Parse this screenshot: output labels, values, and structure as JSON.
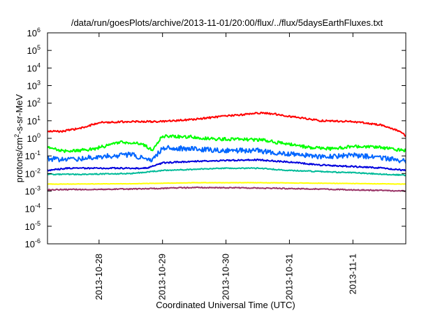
{
  "chart_data": {
    "type": "line",
    "title": "/data/run/goesPlots/archive/2013-11-01/20:00/flux/../flux/5daysEarthFluxes.txt",
    "xlabel": "Coordinated Universal Time (UTC)",
    "ylabel": {
      "prefix": "protons/cm",
      "sup": "2",
      "suffix": "-s-sr-MeV"
    },
    "xlim": [
      "2013-10-27T04:30",
      "2013-11-01T20:00"
    ],
    "ylim": [
      1e-06,
      1000000.0
    ],
    "yscale": "log",
    "grid": false,
    "x_ticks": [
      {
        "x": "2013-10-28T00:00",
        "label": "2013-10-28"
      },
      {
        "x": "2013-10-29T00:00",
        "label": "2013-10-29"
      },
      {
        "x": "2013-10-30T00:00",
        "label": "2013-10-30"
      },
      {
        "x": "2013-10-31T00:00",
        "label": "2013-10-31"
      },
      {
        "x": "2013-11-01T00:00",
        "label": "2013-11-1"
      }
    ],
    "y_ticks": [
      {
        "value": 1e-06,
        "base": "10",
        "exp": "-6"
      },
      {
        "value": 1e-05,
        "base": "10",
        "exp": "-5"
      },
      {
        "value": 0.0001,
        "base": "10",
        "exp": "-4"
      },
      {
        "value": 0.001,
        "base": "10",
        "exp": "-3"
      },
      {
        "value": 0.01,
        "base": "10",
        "exp": "-2"
      },
      {
        "value": 0.1,
        "base": "10",
        "exp": "-1"
      },
      {
        "value": 1,
        "base": "10",
        "exp": "0"
      },
      {
        "value": 10,
        "base": "10",
        "exp": "1"
      },
      {
        "value": 100,
        "base": "10",
        "exp": "2"
      },
      {
        "value": 1000,
        "base": "10",
        "exp": "3"
      },
      {
        "value": 10000,
        "base": "10",
        "exp": "4"
      },
      {
        "value": 100000,
        "base": "10",
        "exp": "5"
      },
      {
        "value": 1000000,
        "base": "10",
        "exp": "6"
      }
    ],
    "series": [
      {
        "color": "#ff0000",
        "noise": 0.05,
        "points": [
          [
            "2013-10-27T04:30",
            2.5
          ],
          [
            "2013-10-27T10:00",
            2.5
          ],
          [
            "2013-10-27T18:00",
            4.0
          ],
          [
            "2013-10-28T00:00",
            8.0
          ],
          [
            "2013-10-28T12:00",
            9.0
          ],
          [
            "2013-10-29T00:00",
            9.0
          ],
          [
            "2013-10-29T12:00",
            12.0
          ],
          [
            "2013-10-29T23:00",
            18.0
          ],
          [
            "2013-10-30T06:00",
            22.0
          ],
          [
            "2013-10-30T12:00",
            28.0
          ],
          [
            "2013-10-30T18:00",
            25.0
          ],
          [
            "2013-10-31T00:00",
            18.0
          ],
          [
            "2013-10-31T12:00",
            10.0
          ],
          [
            "2013-11-01T00:00",
            9.0
          ],
          [
            "2013-11-01T10:00",
            6.0
          ],
          [
            "2013-11-01T18:00",
            2.5
          ],
          [
            "2013-11-01T20:00",
            1.3
          ]
        ]
      },
      {
        "color": "#00ff00",
        "noise": 0.09,
        "points": [
          [
            "2013-10-27T04:30",
            0.3
          ],
          [
            "2013-10-27T12:00",
            0.18
          ],
          [
            "2013-10-27T22:00",
            0.25
          ],
          [
            "2013-10-28T08:00",
            0.6
          ],
          [
            "2013-10-28T16:00",
            0.5
          ],
          [
            "2013-10-28T20:00",
            0.22
          ],
          [
            "2013-10-29T00:00",
            1.3
          ],
          [
            "2013-10-29T12:00",
            1.2
          ],
          [
            "2013-10-29T20:00",
            0.9
          ],
          [
            "2013-10-30T06:00",
            0.9
          ],
          [
            "2013-10-30T14:00",
            0.8
          ],
          [
            "2013-10-30T22:00",
            0.5
          ],
          [
            "2013-10-31T08:00",
            0.3
          ],
          [
            "2013-10-31T16:00",
            0.25
          ],
          [
            "2013-11-01T00:00",
            0.35
          ],
          [
            "2013-11-01T10:00",
            0.3
          ],
          [
            "2013-11-01T20:00",
            0.2
          ]
        ]
      },
      {
        "color": "#0066ff",
        "noise": 0.14,
        "points": [
          [
            "2013-10-27T04:30",
            0.07
          ],
          [
            "2013-10-27T12:00",
            0.06
          ],
          [
            "2013-10-28T00:00",
            0.09
          ],
          [
            "2013-10-28T12:00",
            0.12
          ],
          [
            "2013-10-28T20:00",
            0.05
          ],
          [
            "2013-10-29T00:00",
            0.3
          ],
          [
            "2013-10-29T12:00",
            0.25
          ],
          [
            "2013-10-30T00:00",
            0.2
          ],
          [
            "2013-10-30T12:00",
            0.2
          ],
          [
            "2013-10-31T00:00",
            0.13
          ],
          [
            "2013-10-31T12:00",
            0.09
          ],
          [
            "2013-11-01T00:00",
            0.11
          ],
          [
            "2013-11-01T10:00",
            0.08
          ],
          [
            "2013-11-01T20:00",
            0.05
          ]
        ]
      },
      {
        "color": "#0000dd",
        "noise": 0.04,
        "points": [
          [
            "2013-10-27T04:30",
            0.015
          ],
          [
            "2013-10-27T12:00",
            0.02
          ],
          [
            "2013-10-28T00:00",
            0.02
          ],
          [
            "2013-10-28T18:00",
            0.02
          ],
          [
            "2013-10-29T00:00",
            0.04
          ],
          [
            "2013-10-29T12:00",
            0.05
          ],
          [
            "2013-10-30T00:00",
            0.055
          ],
          [
            "2013-10-30T12:00",
            0.06
          ],
          [
            "2013-10-31T00:00",
            0.045
          ],
          [
            "2013-10-31T12:00",
            0.03
          ],
          [
            "2013-11-01T00:00",
            0.025
          ],
          [
            "2013-11-01T12:00",
            0.02
          ],
          [
            "2013-11-01T20:00",
            0.015
          ]
        ]
      },
      {
        "color": "#00bb99",
        "noise": 0.03,
        "points": [
          [
            "2013-10-27T04:30",
            0.009
          ],
          [
            "2013-10-27T18:00",
            0.009
          ],
          [
            "2013-10-28T12:00",
            0.01
          ],
          [
            "2013-10-29T00:00",
            0.015
          ],
          [
            "2013-10-30T00:00",
            0.02
          ],
          [
            "2013-10-30T12:00",
            0.02
          ],
          [
            "2013-10-31T00:00",
            0.015
          ],
          [
            "2013-11-01T00:00",
            0.011
          ],
          [
            "2013-11-01T20:00",
            0.008
          ]
        ]
      },
      {
        "color": "#ffff00",
        "noise": 0.01,
        "points": [
          [
            "2013-10-27T04:30",
            0.0025
          ],
          [
            "2013-10-28T12:00",
            0.0026
          ],
          [
            "2013-10-29T12:00",
            0.003
          ],
          [
            "2013-10-30T12:00",
            0.003
          ],
          [
            "2013-10-31T12:00",
            0.0028
          ],
          [
            "2013-11-01T20:00",
            0.0025
          ]
        ]
      },
      {
        "color": "#993366",
        "noise": 0.03,
        "points": [
          [
            "2013-10-27T04:30",
            0.0012
          ],
          [
            "2013-10-28T12:00",
            0.0013
          ],
          [
            "2013-10-29T12:00",
            0.0016
          ],
          [
            "2013-10-30T12:00",
            0.0015
          ],
          [
            "2013-10-31T12:00",
            0.0013
          ],
          [
            "2013-11-01T20:00",
            0.001
          ]
        ]
      }
    ]
  }
}
